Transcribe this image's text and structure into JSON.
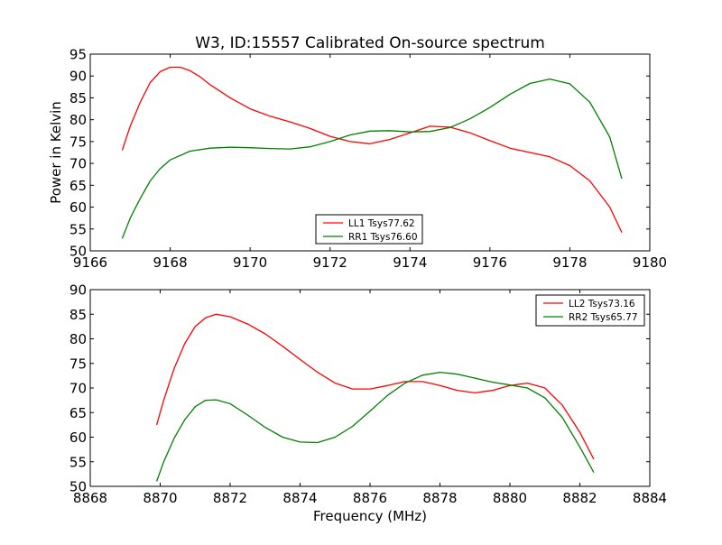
{
  "title": "W3, ID:15557 Calibrated On-source spectrum",
  "chart_data": [
    {
      "type": "line",
      "title": "W3, ID:15557 Calibrated On-source spectrum",
      "xlabel": "",
      "ylabel": "Power in Kelvin",
      "xlim": [
        9166,
        9180
      ],
      "ylim": [
        50,
        95
      ],
      "xticks": [
        "9166",
        "9168",
        "9170",
        "9172",
        "9174",
        "9176",
        "9178",
        "9180"
      ],
      "yticks": [
        "50",
        "55",
        "60",
        "65",
        "70",
        "75",
        "80",
        "85",
        "90",
        "95"
      ],
      "grid": false,
      "legend": "lower-center",
      "series": [
        {
          "name": "LL1 Tsys77.62",
          "color": "#ff0000",
          "x": [
            9166.8,
            9167.0,
            9167.25,
            9167.5,
            9167.75,
            9168.0,
            9168.25,
            9168.5,
            9168.75,
            9169.0,
            9169.5,
            9170.0,
            9170.5,
            9171.0,
            9171.5,
            9172.0,
            9172.5,
            9173.0,
            9173.5,
            9174.0,
            9174.5,
            9175.0,
            9175.5,
            9176.0,
            9176.5,
            9177.0,
            9177.5,
            9178.0,
            9178.5,
            9179.0,
            9179.3
          ],
          "y": [
            73,
            78.5,
            84,
            88.5,
            91,
            92,
            92,
            91.2,
            89.8,
            88,
            85,
            82.5,
            80.8,
            79.5,
            78,
            76.2,
            75,
            74.5,
            75.5,
            77,
            78.5,
            78.3,
            77,
            75.2,
            73.5,
            72.5,
            71.5,
            69.5,
            66,
            60,
            54.2
          ]
        },
        {
          "name": "RR1 Tsys76.60",
          "color": "#008000",
          "x": [
            9166.8,
            9167.0,
            9167.25,
            9167.5,
            9167.75,
            9168.0,
            9168.5,
            9169.0,
            9169.5,
            9170.0,
            9170.5,
            9171.0,
            9171.5,
            9172.0,
            9172.5,
            9173.0,
            9173.5,
            9174.0,
            9174.5,
            9175.0,
            9175.5,
            9176.0,
            9176.5,
            9177.0,
            9177.5,
            9178.0,
            9178.5,
            9179.0,
            9179.3
          ],
          "y": [
            52.8,
            57.5,
            62,
            66,
            68.8,
            70.8,
            72.8,
            73.5,
            73.7,
            73.6,
            73.4,
            73.3,
            73.8,
            75,
            76.5,
            77.4,
            77.5,
            77.2,
            77.3,
            78.2,
            80.2,
            82.8,
            85.8,
            88.3,
            89.3,
            88.2,
            84,
            76,
            66.5
          ]
        }
      ]
    },
    {
      "type": "line",
      "title": "",
      "xlabel": "Frequency (MHz)",
      "ylabel": "",
      "xlim": [
        8868,
        8884
      ],
      "ylim": [
        50,
        90
      ],
      "xticks": [
        "8868",
        "8870",
        "8872",
        "8874",
        "8876",
        "8878",
        "8880",
        "8882",
        "8884"
      ],
      "yticks": [
        "50",
        "55",
        "60",
        "65",
        "70",
        "75",
        "80",
        "85",
        "90"
      ],
      "grid": false,
      "legend": "top-right",
      "series": [
        {
          "name": "LL2 Tsys73.16",
          "color": "#ff0000",
          "x": [
            8869.9,
            8870.1,
            8870.4,
            8870.7,
            8871.0,
            8871.3,
            8871.6,
            8872.0,
            8872.5,
            8873.0,
            8873.5,
            8874.0,
            8874.5,
            8875.0,
            8875.5,
            8876.0,
            8876.5,
            8877.0,
            8877.5,
            8878.0,
            8878.5,
            8879.0,
            8879.5,
            8880.0,
            8880.5,
            8881.0,
            8881.5,
            8882.0,
            8882.4
          ],
          "y": [
            62.5,
            67.5,
            74,
            79,
            82.5,
            84.3,
            85,
            84.5,
            83,
            81,
            78.5,
            75.8,
            73.2,
            71,
            69.8,
            69.8,
            70.5,
            71.3,
            71.3,
            70.5,
            69.5,
            69,
            69.5,
            70.5,
            71,
            70,
            66.5,
            61,
            55.5
          ]
        },
        {
          "name": "RR2 Tsys65.77",
          "color": "#008000",
          "x": [
            8869.9,
            8870.1,
            8870.4,
            8870.7,
            8871.0,
            8871.3,
            8871.6,
            8872.0,
            8872.5,
            8873.0,
            8873.5,
            8874.0,
            8874.5,
            8875.0,
            8875.5,
            8876.0,
            8876.5,
            8877.0,
            8877.5,
            8878.0,
            8878.5,
            8879.0,
            8879.5,
            8880.0,
            8880.5,
            8881.0,
            8881.5,
            8882.0,
            8882.4
          ],
          "y": [
            51,
            55,
            59.8,
            63.5,
            66.2,
            67.5,
            67.6,
            66.8,
            64.5,
            62,
            60,
            59,
            58.9,
            60,
            62.2,
            65.3,
            68.5,
            71,
            72.6,
            73.2,
            72.8,
            72,
            71.2,
            70.6,
            70,
            68,
            64,
            58,
            52.8
          ]
        }
      ]
    }
  ]
}
